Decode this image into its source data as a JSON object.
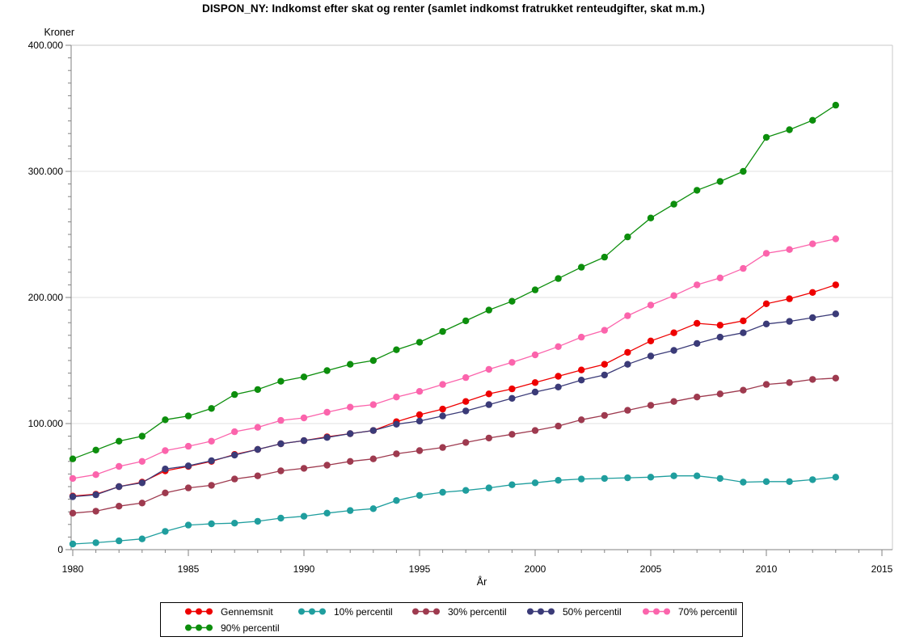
{
  "title": "DISPON_NY: Indkomst efter skat og renter (samlet indkomst fratrukket renteudgifter, skat m.m.)",
  "chart_data": {
    "type": "line",
    "title": "DISPON_NY: Indkomst efter skat og renter (samlet indkomst fratrukket renteudgifter, skat m.m.)",
    "xlabel": "År",
    "ylabel": "Kroner",
    "xlim": [
      1980,
      2015
    ],
    "ylim": [
      0,
      400000
    ],
    "grid": "horizontal-major",
    "legend_position": "bottom",
    "x_ticks": [
      1980,
      1985,
      1990,
      1995,
      2000,
      2005,
      2010,
      2015
    ],
    "x_minor_step": 1,
    "y_ticks": [
      {
        "value": 0,
        "label": "0"
      },
      {
        "value": 100000,
        "label": "100.000"
      },
      {
        "value": 200000,
        "label": "200.000"
      },
      {
        "value": 300000,
        "label": "300.000"
      },
      {
        "value": 400000,
        "label": "400.000"
      }
    ],
    "y_minor_step": 10000,
    "x": [
      1980,
      1981,
      1982,
      1983,
      1984,
      1985,
      1986,
      1987,
      1988,
      1989,
      1990,
      1991,
      1992,
      1993,
      1994,
      1995,
      1996,
      1997,
      1998,
      1999,
      2000,
      2001,
      2002,
      2003,
      2004,
      2005,
      2006,
      2007,
      2008,
      2009,
      2010,
      2011,
      2012,
      2013
    ],
    "series": [
      {
        "name": "Gennemsnit",
        "color": "#EE0000",
        "values": [
          42500,
          44000,
          50000,
          53500,
          62500,
          66000,
          70000,
          75500,
          79500,
          84000,
          86500,
          89500,
          92000,
          94500,
          101500,
          107000,
          111500,
          117500,
          123500,
          127500,
          132500,
          137500,
          142500,
          147000,
          156500,
          165500,
          172000,
          179500,
          178000,
          181500,
          195000,
          199000,
          204000,
          210000
        ]
      },
      {
        "name": "10% percentil",
        "color": "#1F9E9E",
        "values": [
          4500,
          5500,
          7000,
          8500,
          14500,
          19500,
          20500,
          21000,
          22500,
          25000,
          26500,
          29000,
          31000,
          32500,
          39000,
          43000,
          45500,
          47000,
          49000,
          51500,
          53000,
          55000,
          56000,
          56500,
          57000,
          57500,
          58500,
          58500,
          56500,
          53500,
          54000,
          54000,
          55500,
          57500
        ]
      },
      {
        "name": "30% percentil",
        "color": "#9E3A4F",
        "values": [
          29000,
          30500,
          34500,
          37000,
          45000,
          49000,
          51000,
          56000,
          58500,
          62500,
          64500,
          67000,
          70000,
          72000,
          76000,
          78500,
          81000,
          85000,
          88500,
          91500,
          94500,
          98000,
          103000,
          106500,
          110500,
          114500,
          117500,
          121000,
          123500,
          126500,
          131000,
          132500,
          135000,
          136000
        ]
      },
      {
        "name": "50% percentil",
        "color": "#3B3B78",
        "values": [
          42000,
          43500,
          50000,
          53000,
          64000,
          66500,
          70500,
          75000,
          79500,
          84000,
          86500,
          89000,
          92000,
          94500,
          99500,
          102000,
          106000,
          110000,
          115000,
          120000,
          125000,
          129000,
          134500,
          138500,
          147000,
          153500,
          158000,
          163500,
          168500,
          172000,
          179000,
          181000,
          184000,
          187000
        ]
      },
      {
        "name": "70% percentil",
        "color": "#FB64AC",
        "values": [
          56500,
          59500,
          66000,
          70000,
          78500,
          82000,
          86000,
          93500,
          97000,
          102500,
          104500,
          109000,
          113000,
          115000,
          121000,
          125500,
          131000,
          136500,
          143000,
          148500,
          154500,
          161000,
          168500,
          174000,
          185500,
          194000,
          201500,
          210000,
          215500,
          223000,
          235000,
          238000,
          242500,
          246500
        ]
      },
      {
        "name": "90% percentil",
        "color": "#0C8E0C",
        "values": [
          72000,
          79000,
          86000,
          90000,
          103000,
          106000,
          112000,
          123000,
          127000,
          133500,
          137000,
          142000,
          147000,
          150000,
          158500,
          164500,
          173000,
          181500,
          190000,
          197000,
          206000,
          215000,
          224000,
          232000,
          248000,
          263000,
          274000,
          285000,
          292000,
          300000,
          327000,
          333000,
          340500,
          352500
        ]
      }
    ]
  }
}
